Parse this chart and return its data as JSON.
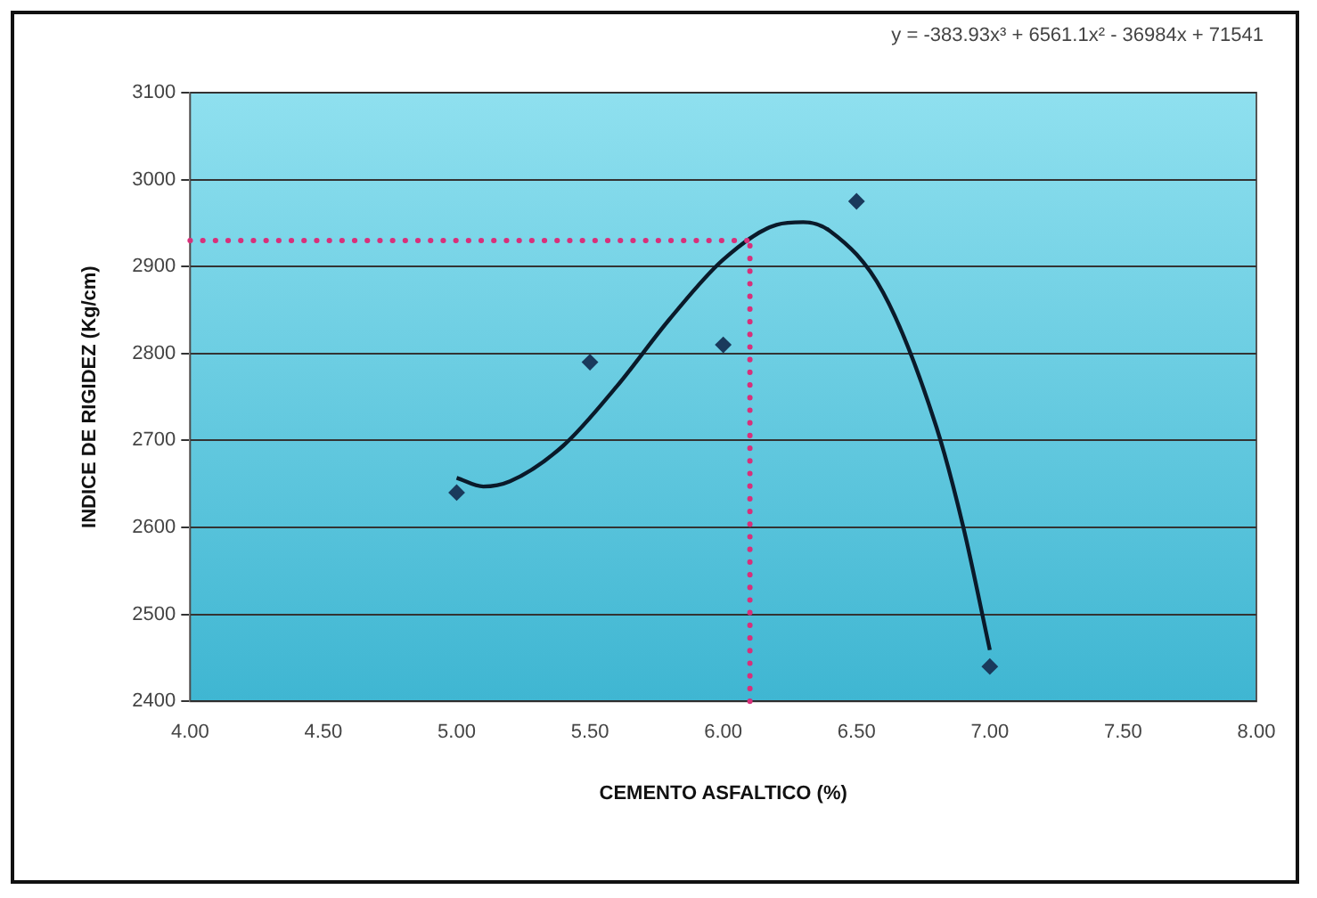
{
  "chart_data": {
    "type": "scatter",
    "xlabel": "CEMENTO ASFALTICO (%)",
    "ylabel": "INDICE DE RIGIDEZ (Kg/cm)",
    "annotations": [
      "y = -383.93x³ + 6561.1x² - 36984x + 71541"
    ],
    "xlim": [
      4,
      8
    ],
    "ylim": [
      2400,
      3100
    ],
    "xticks": [
      {
        "value": 4,
        "label": "4.00"
      },
      {
        "value": 4.5,
        "label": "4.50"
      },
      {
        "value": 5,
        "label": "5.00"
      },
      {
        "value": 5.5,
        "label": "5.50"
      },
      {
        "value": 6,
        "label": "6.00"
      },
      {
        "value": 6.5,
        "label": "6.50"
      },
      {
        "value": 7,
        "label": "7.00"
      },
      {
        "value": 7.5,
        "label": "7.50"
      },
      {
        "value": 8,
        "label": "8.00"
      }
    ],
    "yticks": [
      2400,
      2500,
      2600,
      2700,
      2800,
      2900,
      3000,
      3100
    ],
    "grid": "y",
    "legend": false,
    "marker": "diamond",
    "series": [
      {
        "color": "#1a3a5c",
        "x": [
          5,
          5.5,
          6,
          6.5,
          7
        ],
        "values": [
          2640,
          2790,
          2810,
          2975,
          2440
        ]
      },
      {
        "type": "line",
        "color": "#0a1a2a",
        "marker": "none",
        "x": [
          5,
          5.1,
          5.2,
          5.4,
          5.6,
          5.8,
          6,
          6.2,
          6.3,
          6.4,
          6.6,
          6.8,
          6.9,
          7
        ],
        "values": [
          2657,
          2647,
          2653,
          2694,
          2762,
          2840,
          2908,
          2948,
          2951,
          2941,
          2870,
          2715,
          2601,
          2459
        ]
      }
    ],
    "ref_lines": [
      {
        "axis": "y",
        "value": 2930,
        "color": "#d8307a",
        "line_style": "dotted"
      },
      {
        "axis": "x",
        "value": 6.1,
        "color": "#d8307a",
        "line_style": "dotted"
      }
    ]
  }
}
